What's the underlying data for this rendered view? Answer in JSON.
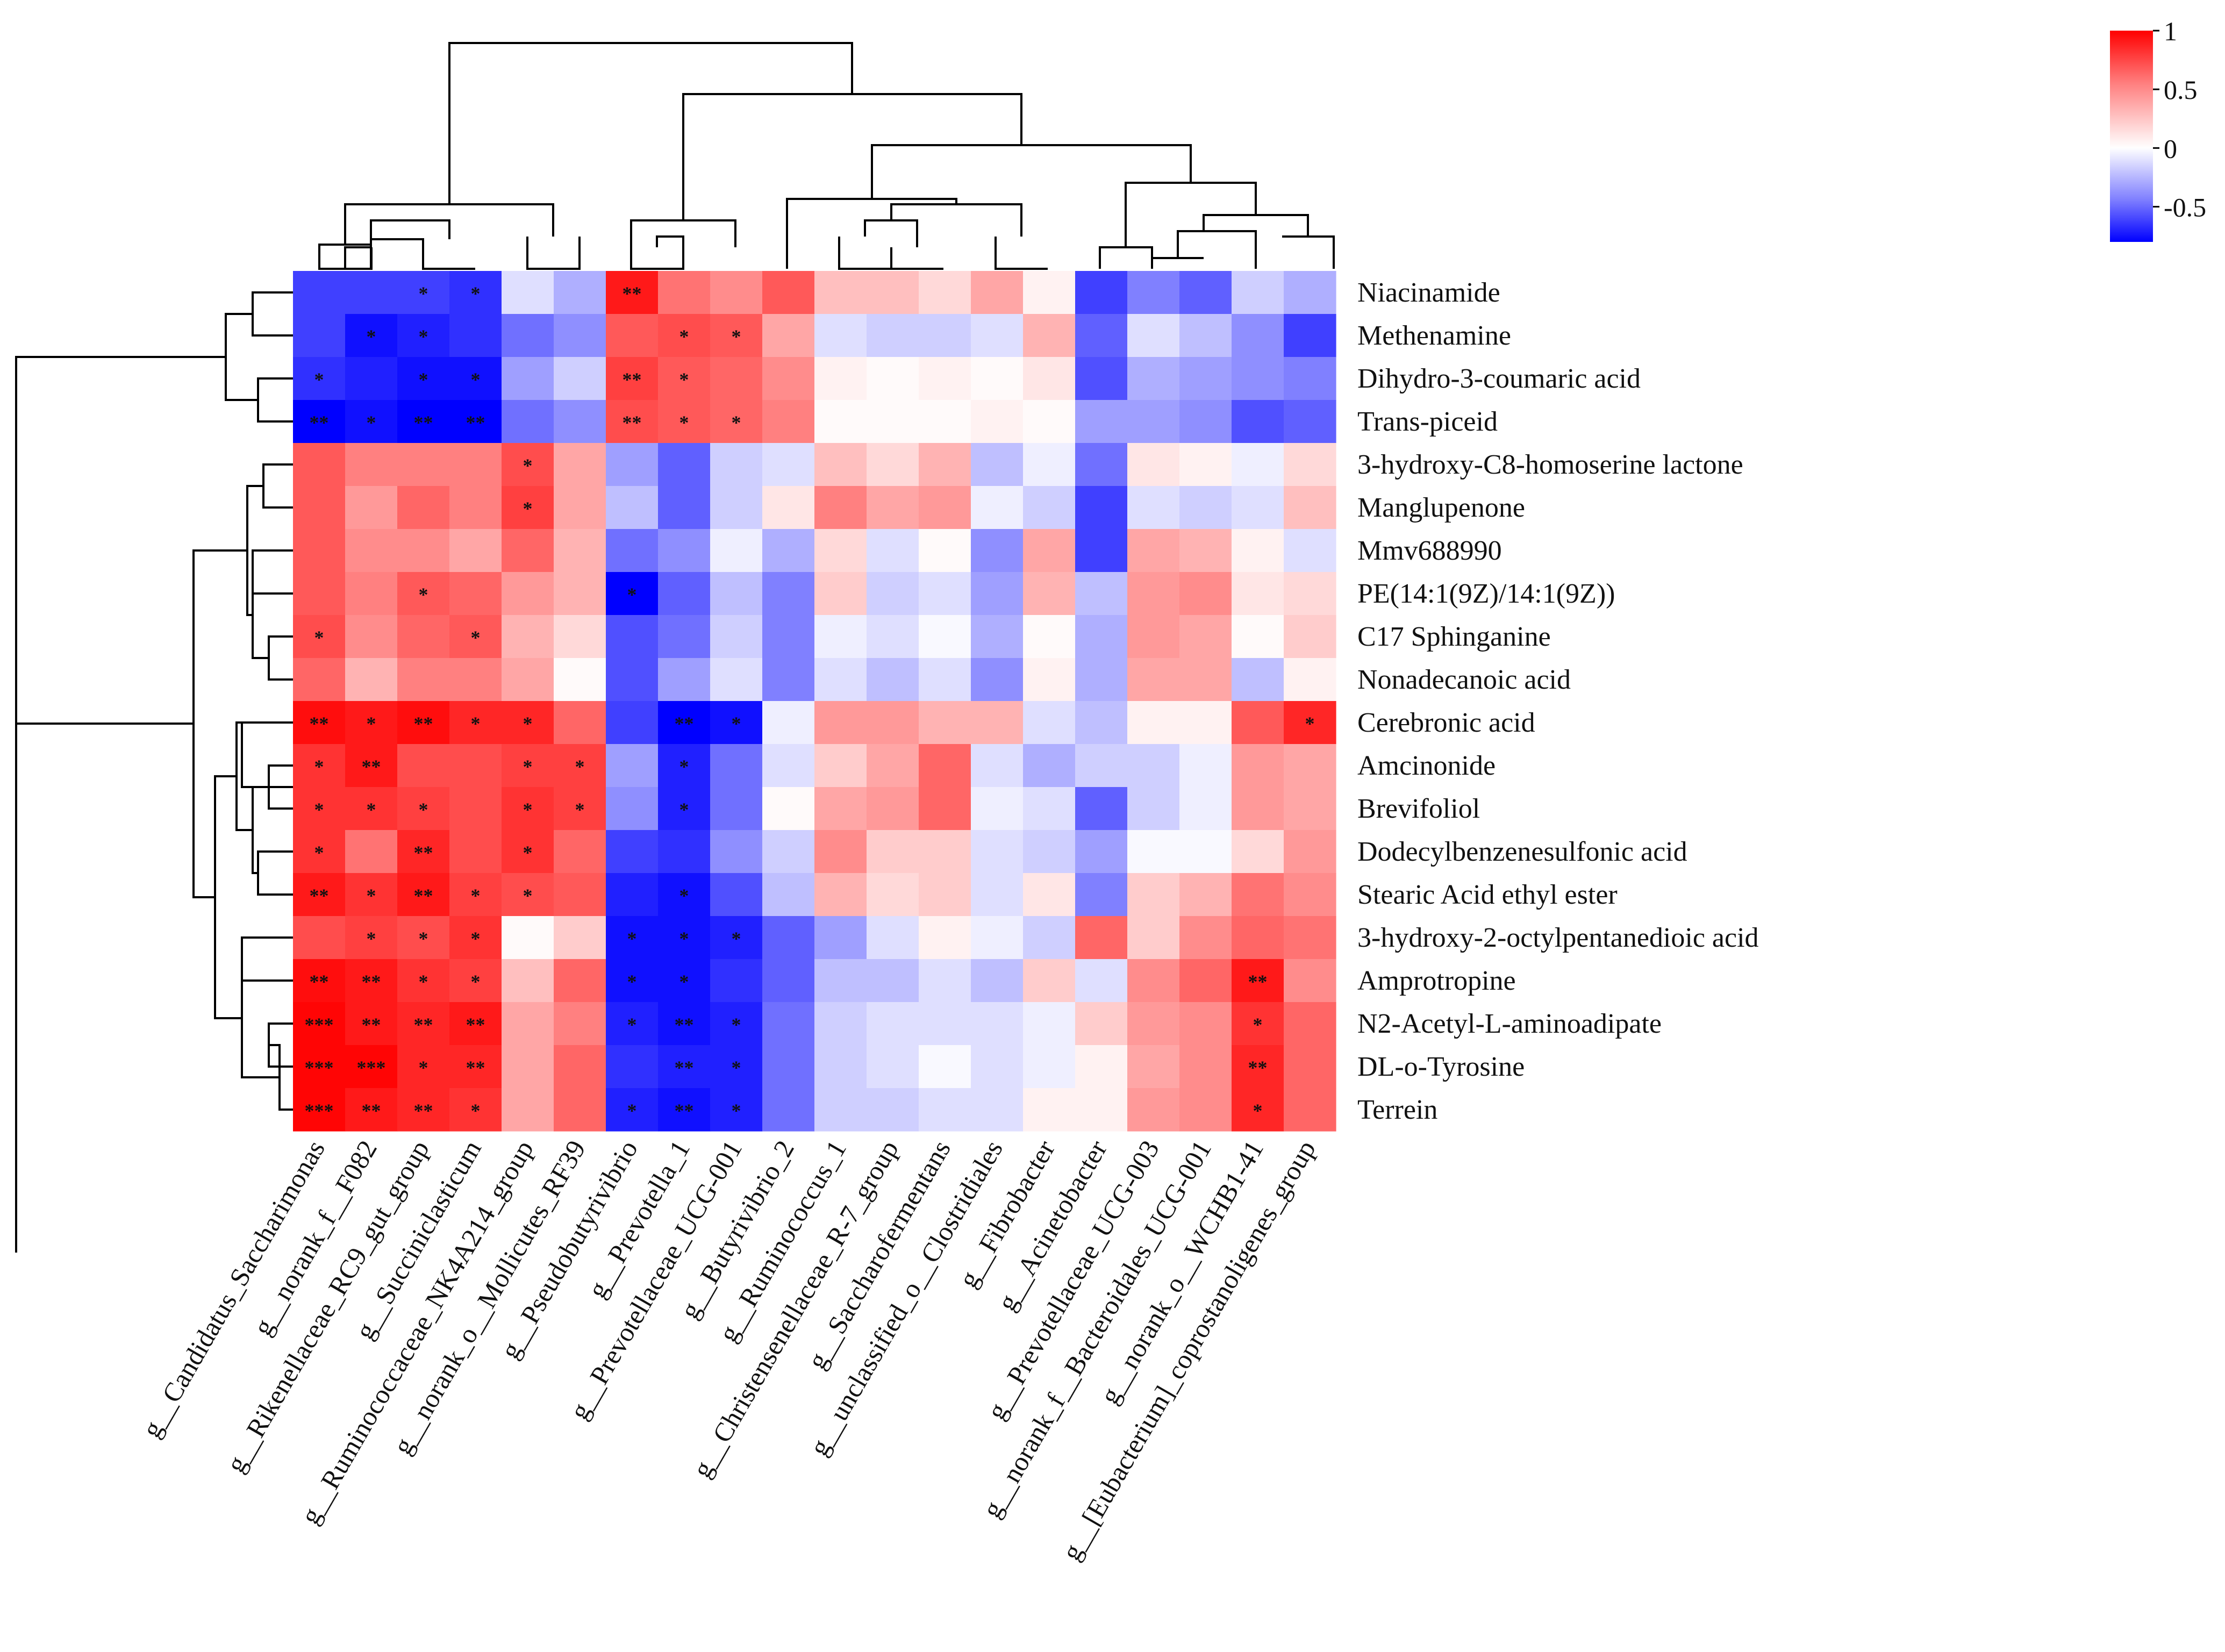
{
  "chart_data": {
    "type": "heatmap",
    "title": "",
    "xlabel": "",
    "ylabel": "",
    "rows": [
      "Niacinamide",
      "Methenamine",
      "Dihydro-3-coumaric acid",
      "Trans-piceid",
      "3-hydroxy-C8-homoserine lactone",
      "Manglupenone",
      "Mmv688990",
      "PE(14:1(9Z)/14:1(9Z))",
      "C17 Sphinganine",
      "Nonadecanoic acid",
      "Cerebronic acid",
      "Amcinonide",
      "Brevifoliol",
      "Dodecylbenzenesulfonic acid",
      "Stearic Acid ethyl ester",
      "3-hydroxy-2-octylpentanedioic acid",
      "Amprotropine",
      "N2-Acetyl-L-aminoadipate",
      "DL-o-Tyrosine",
      "Terrein"
    ],
    "columns": [
      "g__Candidatus_Saccharimonas",
      "g__norank_f__F082",
      "g__Rikenellaceae_RC9_gut_group",
      "g__Succiniclasticum",
      "g__Ruminococcaceae_NK4A214_group",
      "g__norank_o__Mollicutes_RF39",
      "g__Pseudobutyrivibrio",
      "g__Prevotella_1",
      "g__Prevotellaceae_UCG-001",
      "g__Butyrivibrio_2",
      "g__Ruminococcus_1",
      "g__Christensenellaceae_R-7_group",
      "g__Saccharofermentans",
      "g__unclassified_o__Clostridiales",
      "g__Fibrobacter",
      "g__Acinetobacter",
      "g__Prevotellaceae_UCG-003",
      "g__norank_f__Bacteroidales_UCG-001",
      "g__norank_o__WCHB1-41",
      "g__[Eubacterium]_coprostanoligenes_group"
    ],
    "values": [
      [
        -0.6,
        -0.6,
        -0.6,
        -0.65,
        -0.1,
        -0.25,
        0.9,
        0.55,
        0.45,
        0.65,
        0.25,
        0.25,
        0.15,
        0.35,
        0.05,
        -0.6,
        -0.4,
        -0.5,
        -0.15,
        -0.25
      ],
      [
        -0.6,
        -0.75,
        -0.7,
        -0.65,
        -0.45,
        -0.35,
        0.65,
        0.7,
        0.65,
        0.35,
        -0.1,
        -0.15,
        -0.15,
        -0.1,
        0.3,
        -0.5,
        -0.1,
        -0.2,
        -0.35,
        -0.6
      ],
      [
        -0.65,
        -0.7,
        -0.75,
        -0.75,
        -0.3,
        -0.15,
        0.75,
        0.65,
        0.6,
        0.45,
        0.05,
        0.02,
        0.05,
        0.02,
        0.1,
        -0.55,
        -0.25,
        -0.3,
        -0.35,
        -0.4
      ],
      [
        -0.85,
        -0.75,
        -0.8,
        -0.8,
        -0.45,
        -0.35,
        0.7,
        0.65,
        0.6,
        0.5,
        0.02,
        0.02,
        0.02,
        0.05,
        0.02,
        -0.3,
        -0.3,
        -0.35,
        -0.55,
        -0.5
      ],
      [
        0.65,
        0.5,
        0.5,
        0.5,
        0.7,
        0.35,
        -0.3,
        -0.5,
        -0.15,
        -0.1,
        0.25,
        0.15,
        0.3,
        -0.2,
        -0.05,
        -0.45,
        0.1,
        0.05,
        -0.05,
        0.15
      ],
      [
        0.65,
        0.4,
        0.6,
        0.5,
        0.75,
        0.35,
        -0.2,
        -0.5,
        -0.15,
        0.1,
        0.5,
        0.35,
        0.4,
        -0.05,
        -0.15,
        -0.6,
        -0.1,
        -0.15,
        -0.1,
        0.25
      ],
      [
        0.65,
        0.45,
        0.45,
        0.35,
        0.6,
        0.3,
        -0.45,
        -0.35,
        -0.05,
        -0.25,
        0.15,
        -0.1,
        0.02,
        -0.35,
        0.35,
        -0.6,
        0.35,
        0.3,
        0.05,
        -0.1
      ],
      [
        0.65,
        0.5,
        0.65,
        0.6,
        0.4,
        0.3,
        -0.85,
        -0.5,
        -0.2,
        -0.4,
        0.2,
        -0.15,
        -0.1,
        -0.3,
        0.3,
        -0.2,
        0.4,
        0.45,
        0.1,
        0.15
      ],
      [
        0.7,
        0.45,
        0.6,
        0.65,
        0.3,
        0.15,
        -0.55,
        -0.45,
        -0.15,
        -0.4,
        -0.05,
        -0.1,
        -0.02,
        -0.25,
        0.02,
        -0.25,
        0.4,
        0.35,
        0.02,
        0.2
      ],
      [
        0.6,
        0.3,
        0.5,
        0.5,
        0.35,
        0.02,
        -0.55,
        -0.3,
        -0.1,
        -0.4,
        -0.1,
        -0.2,
        -0.1,
        -0.35,
        0.05,
        -0.25,
        0.35,
        0.35,
        -0.2,
        0.05
      ],
      [
        0.95,
        0.9,
        0.95,
        0.85,
        0.85,
        0.6,
        -0.6,
        -0.9,
        -0.75,
        -0.05,
        0.4,
        0.4,
        0.3,
        0.3,
        -0.1,
        -0.2,
        0.05,
        0.05,
        0.65,
        0.85
      ],
      [
        0.8,
        0.9,
        0.7,
        0.7,
        0.75,
        0.75,
        -0.3,
        -0.7,
        -0.45,
        -0.1,
        0.2,
        0.35,
        0.6,
        -0.1,
        -0.25,
        -0.15,
        -0.15,
        -0.05,
        0.4,
        0.35
      ],
      [
        0.8,
        0.8,
        0.75,
        0.7,
        0.8,
        0.75,
        -0.35,
        -0.7,
        -0.45,
        0.02,
        0.35,
        0.4,
        0.6,
        -0.05,
        -0.1,
        -0.5,
        -0.15,
        -0.05,
        0.4,
        0.35
      ],
      [
        0.8,
        0.55,
        0.85,
        0.7,
        0.8,
        0.6,
        -0.6,
        -0.65,
        -0.35,
        -0.15,
        0.45,
        0.2,
        0.2,
        -0.1,
        -0.15,
        -0.3,
        -0.02,
        -0.02,
        0.15,
        0.4
      ],
      [
        0.9,
        0.8,
        0.9,
        0.75,
        0.7,
        0.65,
        -0.7,
        -0.75,
        -0.55,
        -0.2,
        0.3,
        0.15,
        0.2,
        -0.1,
        0.1,
        -0.4,
        0.2,
        0.3,
        0.55,
        0.45
      ],
      [
        0.7,
        0.75,
        0.7,
        0.8,
        0.02,
        0.2,
        -0.75,
        -0.75,
        -0.7,
        -0.5,
        -0.3,
        -0.1,
        0.05,
        -0.05,
        -0.15,
        0.6,
        0.2,
        0.45,
        0.6,
        0.55
      ],
      [
        0.95,
        0.9,
        0.8,
        0.75,
        0.25,
        0.6,
        -0.75,
        -0.75,
        -0.65,
        -0.5,
        -0.2,
        -0.2,
        -0.1,
        -0.2,
        0.2,
        -0.1,
        0.45,
        0.6,
        0.9,
        0.45
      ],
      [
        0.98,
        0.9,
        0.85,
        0.9,
        0.35,
        0.5,
        -0.7,
        -0.75,
        -0.7,
        -0.45,
        -0.15,
        -0.1,
        -0.1,
        -0.1,
        -0.05,
        0.2,
        0.4,
        0.45,
        0.8,
        0.6
      ],
      [
        0.98,
        0.98,
        0.85,
        0.85,
        0.35,
        0.6,
        -0.65,
        -0.7,
        -0.7,
        -0.45,
        -0.15,
        -0.1,
        -0.02,
        -0.1,
        -0.05,
        0.05,
        0.35,
        0.45,
        0.85,
        0.6
      ],
      [
        0.98,
        0.9,
        0.85,
        0.8,
        0.35,
        0.6,
        -0.7,
        -0.75,
        -0.7,
        -0.45,
        -0.15,
        -0.15,
        -0.1,
        -0.1,
        0.05,
        0.05,
        0.4,
        0.45,
        0.85,
        0.6
      ]
    ],
    "significance": [
      [
        "",
        "",
        "*",
        "*",
        "",
        "",
        "**",
        "",
        "",
        "",
        "",
        "",
        "",
        "",
        "",
        "",
        "",
        "",
        "",
        ""
      ],
      [
        "",
        "*",
        "*",
        "",
        "",
        "",
        "",
        "*",
        "*",
        "",
        "",
        "",
        "",
        "",
        "",
        "",
        "",
        "",
        "",
        ""
      ],
      [
        "*",
        "",
        "*",
        "*",
        "",
        "",
        "**",
        "*",
        "",
        "",
        "",
        "",
        "",
        "",
        "",
        "",
        "",
        "",
        "",
        ""
      ],
      [
        "**",
        "*",
        "**",
        "**",
        "",
        "",
        "**",
        "*",
        "*",
        "",
        "",
        "",
        "",
        "",
        "",
        "",
        "",
        "",
        "",
        ""
      ],
      [
        "",
        "",
        "",
        "",
        "*",
        "",
        "",
        "",
        "",
        "",
        "",
        "",
        "",
        "",
        "",
        "",
        "",
        "",
        "",
        ""
      ],
      [
        "",
        "",
        "",
        "",
        "*",
        "",
        "",
        "",
        "",
        "",
        "",
        "",
        "",
        "",
        "",
        "",
        "",
        "",
        "",
        ""
      ],
      [
        "",
        "",
        "",
        "",
        "",
        "",
        "",
        "",
        "",
        "",
        "",
        "",
        "",
        "",
        "",
        "",
        "",
        "",
        "",
        ""
      ],
      [
        "",
        "",
        "*",
        "",
        "",
        "",
        "*",
        "",
        "",
        "",
        "",
        "",
        "",
        "",
        "",
        "",
        "",
        "",
        "",
        ""
      ],
      [
        "*",
        "",
        "",
        "*",
        "",
        "",
        "",
        "",
        "",
        "",
        "",
        "",
        "",
        "",
        "",
        "",
        "",
        "",
        "",
        ""
      ],
      [
        "",
        "",
        "",
        "",
        "",
        "",
        "",
        "",
        "",
        "",
        "",
        "",
        "",
        "",
        "",
        "",
        "",
        "",
        "",
        ""
      ],
      [
        "**",
        "*",
        "**",
        "*",
        "*",
        "",
        "",
        "**",
        "*",
        "",
        "",
        "",
        "",
        "",
        "",
        "",
        "",
        "",
        "",
        "*"
      ],
      [
        "*",
        "**",
        "",
        "",
        "*",
        "*",
        "",
        "*",
        "",
        "",
        "",
        "",
        "",
        "",
        "",
        "",
        "",
        "",
        "",
        ""
      ],
      [
        "*",
        "*",
        "*",
        "",
        "*",
        "*",
        "",
        "*",
        "",
        "",
        "",
        "",
        "",
        "",
        "",
        "",
        "",
        "",
        "",
        ""
      ],
      [
        "*",
        "",
        "**",
        "",
        "*",
        "",
        "",
        "",
        "",
        "",
        "",
        "",
        "",
        "",
        "",
        "",
        "",
        "",
        "",
        ""
      ],
      [
        "**",
        "*",
        "**",
        "*",
        "*",
        "",
        "",
        "*",
        "",
        "",
        "",
        "",
        "",
        "",
        "",
        "",
        "",
        "",
        "",
        ""
      ],
      [
        "",
        "*",
        "*",
        "*",
        "",
        "",
        "*",
        "*",
        "*",
        "",
        "",
        "",
        "",
        "",
        "",
        "",
        "",
        "",
        "",
        ""
      ],
      [
        "**",
        "**",
        "*",
        "*",
        "",
        "",
        "*",
        "*",
        "",
        "",
        "",
        "",
        "",
        "",
        "",
        "",
        "",
        "",
        "**",
        ""
      ],
      [
        "***",
        "**",
        "**",
        "**",
        "",
        "",
        "*",
        "**",
        "*",
        "",
        "",
        "",
        "",
        "",
        "",
        "",
        "",
        "",
        "*",
        ""
      ],
      [
        "***",
        "***",
        "*",
        "**",
        "",
        "",
        "",
        "**",
        "*",
        "",
        "",
        "",
        "",
        "",
        "",
        "",
        "",
        "",
        "**",
        ""
      ],
      [
        "***",
        "**",
        "**",
        "*",
        "",
        "",
        "*",
        "**",
        "*",
        "",
        "",
        "",
        "",
        "",
        "",
        "",
        "",
        "",
        "*",
        ""
      ]
    ],
    "colorbar": {
      "ticks": [
        "1",
        "0.5",
        "0",
        "-0.5"
      ],
      "range": [
        -0.8,
        1
      ],
      "colors": {
        "low": "#0000ff",
        "mid": "#ffffff",
        "high": "#ff0000"
      }
    },
    "row_dendrogram": true,
    "column_dendrogram": true
  }
}
